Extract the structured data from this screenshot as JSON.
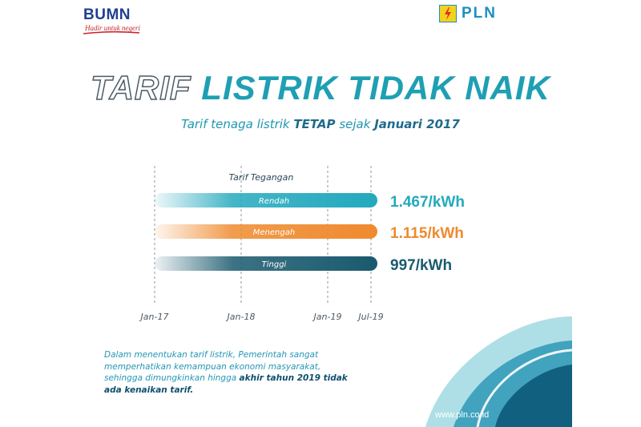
{
  "header": {
    "bumn_logo": "BUMN",
    "bumn_tagline": "Hadir untuk negeri",
    "pln_logo": "PLN"
  },
  "headline": {
    "part1": "TARIF",
    "part2": "LISTRIK TIDAK NAIK",
    "sub_part1": "Tarif tenaga listrik ",
    "sub_bold1": "TETAP",
    "sub_part2": " sejak ",
    "sub_bold2": "Januari 2017"
  },
  "chart_data": {
    "type": "bar",
    "orientation": "horizontal",
    "title": "",
    "legend_title": "Tarif Tegangan",
    "x_ticks": [
      "Jan-17",
      "Jan-18",
      "Jan-19",
      "Jul-19"
    ],
    "x_range": [
      "Jan-17",
      "Jul-19"
    ],
    "series": [
      {
        "name": "Rendah",
        "start": "Jan-17",
        "end": "Jul-19",
        "value": 1467,
        "value_label": "1.467/kWh",
        "color": "#23a9bd"
      },
      {
        "name": "Menengah",
        "start": "Jan-17",
        "end": "Jul-19",
        "value": 1115,
        "value_label": "1.115/kWh",
        "color": "#ef8a2e"
      },
      {
        "name": "Tinggi",
        "start": "Jan-17",
        "end": "Jul-19",
        "value": 997,
        "value_label": "997/kWh",
        "color": "#1a5a6e"
      }
    ],
    "gridlines": "dashed vertical at each tick"
  },
  "note": {
    "text": "Dalam menentukan tarif listrik, Pemerintah sangat memperhatikan kemampuan ekonomi masyarakat, sehingga dimungkinkan hingga ",
    "bold": "akhir tahun 2019 tidak ada kenaikan tarif."
  },
  "footer": {
    "url": "www.pln.co.id"
  },
  "colors": {
    "teal": "#1f9fb3",
    "orange": "#ef8a2e",
    "dark_teal": "#1a5a6e",
    "navy": "#1f3f8f"
  }
}
